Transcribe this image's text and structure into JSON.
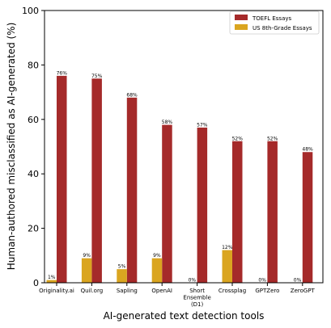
{
  "chart_data": {
    "type": "bar",
    "title": "",
    "xlabel": "AI-generated text detection tools",
    "ylabel": "Human-authored misclassified as AI-generated (%)",
    "ylim": [
      0,
      100
    ],
    "yticks": [
      0,
      20,
      40,
      60,
      80,
      100
    ],
    "grid": false,
    "legend_position": "top-right",
    "categories": [
      [
        "Originality.ai"
      ],
      [
        "Quil.org"
      ],
      [
        "Sapling"
      ],
      [
        "OpenAI"
      ],
      [
        "Short",
        "Ensemble",
        "(D1)"
      ],
      [
        "Crossplag"
      ],
      [
        "GPTZero"
      ],
      [
        "ZeroGPT"
      ]
    ],
    "series": [
      {
        "name": "TOEFL Essays",
        "color": "#a52a2a",
        "values": [
          76,
          75,
          68,
          58,
          57,
          52,
          52,
          48
        ],
        "labels": [
          "76%",
          "75%",
          "68%",
          "58%",
          "57%",
          "52%",
          "52%",
          "48%"
        ]
      },
      {
        "name": "US 8th-Grade Essays",
        "color": "#daa520",
        "values": [
          1,
          9,
          5,
          9,
          0,
          12,
          0,
          0
        ],
        "labels": [
          "1%",
          "9%",
          "5%",
          "9%",
          "0%",
          "12%",
          "0%",
          "0%"
        ]
      }
    ]
  }
}
